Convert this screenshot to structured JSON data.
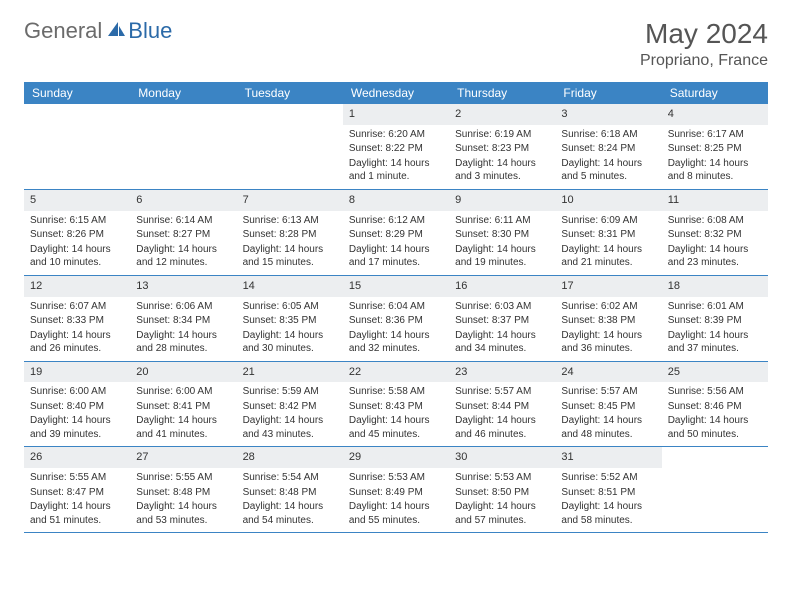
{
  "brand": {
    "word1": "General",
    "word2": "Blue"
  },
  "title": "May 2024",
  "location": "Propriano, France",
  "colors": {
    "header_bg": "#3b84c4",
    "header_text": "#ffffff",
    "daynum_bg": "#eceef0",
    "border": "#3b84c4",
    "brand_gray": "#6b6b6b",
    "brand_blue": "#2b6aa8"
  },
  "day_names": [
    "Sunday",
    "Monday",
    "Tuesday",
    "Wednesday",
    "Thursday",
    "Friday",
    "Saturday"
  ],
  "weeks": [
    [
      {
        "n": "",
        "sunrise": "",
        "sunset": "",
        "daylight": ""
      },
      {
        "n": "",
        "sunrise": "",
        "sunset": "",
        "daylight": ""
      },
      {
        "n": "",
        "sunrise": "",
        "sunset": "",
        "daylight": ""
      },
      {
        "n": "1",
        "sunrise": "Sunrise: 6:20 AM",
        "sunset": "Sunset: 8:22 PM",
        "daylight": "Daylight: 14 hours and 1 minute."
      },
      {
        "n": "2",
        "sunrise": "Sunrise: 6:19 AM",
        "sunset": "Sunset: 8:23 PM",
        "daylight": "Daylight: 14 hours and 3 minutes."
      },
      {
        "n": "3",
        "sunrise": "Sunrise: 6:18 AM",
        "sunset": "Sunset: 8:24 PM",
        "daylight": "Daylight: 14 hours and 5 minutes."
      },
      {
        "n": "4",
        "sunrise": "Sunrise: 6:17 AM",
        "sunset": "Sunset: 8:25 PM",
        "daylight": "Daylight: 14 hours and 8 minutes."
      }
    ],
    [
      {
        "n": "5",
        "sunrise": "Sunrise: 6:15 AM",
        "sunset": "Sunset: 8:26 PM",
        "daylight": "Daylight: 14 hours and 10 minutes."
      },
      {
        "n": "6",
        "sunrise": "Sunrise: 6:14 AM",
        "sunset": "Sunset: 8:27 PM",
        "daylight": "Daylight: 14 hours and 12 minutes."
      },
      {
        "n": "7",
        "sunrise": "Sunrise: 6:13 AM",
        "sunset": "Sunset: 8:28 PM",
        "daylight": "Daylight: 14 hours and 15 minutes."
      },
      {
        "n": "8",
        "sunrise": "Sunrise: 6:12 AM",
        "sunset": "Sunset: 8:29 PM",
        "daylight": "Daylight: 14 hours and 17 minutes."
      },
      {
        "n": "9",
        "sunrise": "Sunrise: 6:11 AM",
        "sunset": "Sunset: 8:30 PM",
        "daylight": "Daylight: 14 hours and 19 minutes."
      },
      {
        "n": "10",
        "sunrise": "Sunrise: 6:09 AM",
        "sunset": "Sunset: 8:31 PM",
        "daylight": "Daylight: 14 hours and 21 minutes."
      },
      {
        "n": "11",
        "sunrise": "Sunrise: 6:08 AM",
        "sunset": "Sunset: 8:32 PM",
        "daylight": "Daylight: 14 hours and 23 minutes."
      }
    ],
    [
      {
        "n": "12",
        "sunrise": "Sunrise: 6:07 AM",
        "sunset": "Sunset: 8:33 PM",
        "daylight": "Daylight: 14 hours and 26 minutes."
      },
      {
        "n": "13",
        "sunrise": "Sunrise: 6:06 AM",
        "sunset": "Sunset: 8:34 PM",
        "daylight": "Daylight: 14 hours and 28 minutes."
      },
      {
        "n": "14",
        "sunrise": "Sunrise: 6:05 AM",
        "sunset": "Sunset: 8:35 PM",
        "daylight": "Daylight: 14 hours and 30 minutes."
      },
      {
        "n": "15",
        "sunrise": "Sunrise: 6:04 AM",
        "sunset": "Sunset: 8:36 PM",
        "daylight": "Daylight: 14 hours and 32 minutes."
      },
      {
        "n": "16",
        "sunrise": "Sunrise: 6:03 AM",
        "sunset": "Sunset: 8:37 PM",
        "daylight": "Daylight: 14 hours and 34 minutes."
      },
      {
        "n": "17",
        "sunrise": "Sunrise: 6:02 AM",
        "sunset": "Sunset: 8:38 PM",
        "daylight": "Daylight: 14 hours and 36 minutes."
      },
      {
        "n": "18",
        "sunrise": "Sunrise: 6:01 AM",
        "sunset": "Sunset: 8:39 PM",
        "daylight": "Daylight: 14 hours and 37 minutes."
      }
    ],
    [
      {
        "n": "19",
        "sunrise": "Sunrise: 6:00 AM",
        "sunset": "Sunset: 8:40 PM",
        "daylight": "Daylight: 14 hours and 39 minutes."
      },
      {
        "n": "20",
        "sunrise": "Sunrise: 6:00 AM",
        "sunset": "Sunset: 8:41 PM",
        "daylight": "Daylight: 14 hours and 41 minutes."
      },
      {
        "n": "21",
        "sunrise": "Sunrise: 5:59 AM",
        "sunset": "Sunset: 8:42 PM",
        "daylight": "Daylight: 14 hours and 43 minutes."
      },
      {
        "n": "22",
        "sunrise": "Sunrise: 5:58 AM",
        "sunset": "Sunset: 8:43 PM",
        "daylight": "Daylight: 14 hours and 45 minutes."
      },
      {
        "n": "23",
        "sunrise": "Sunrise: 5:57 AM",
        "sunset": "Sunset: 8:44 PM",
        "daylight": "Daylight: 14 hours and 46 minutes."
      },
      {
        "n": "24",
        "sunrise": "Sunrise: 5:57 AM",
        "sunset": "Sunset: 8:45 PM",
        "daylight": "Daylight: 14 hours and 48 minutes."
      },
      {
        "n": "25",
        "sunrise": "Sunrise: 5:56 AM",
        "sunset": "Sunset: 8:46 PM",
        "daylight": "Daylight: 14 hours and 50 minutes."
      }
    ],
    [
      {
        "n": "26",
        "sunrise": "Sunrise: 5:55 AM",
        "sunset": "Sunset: 8:47 PM",
        "daylight": "Daylight: 14 hours and 51 minutes."
      },
      {
        "n": "27",
        "sunrise": "Sunrise: 5:55 AM",
        "sunset": "Sunset: 8:48 PM",
        "daylight": "Daylight: 14 hours and 53 minutes."
      },
      {
        "n": "28",
        "sunrise": "Sunrise: 5:54 AM",
        "sunset": "Sunset: 8:48 PM",
        "daylight": "Daylight: 14 hours and 54 minutes."
      },
      {
        "n": "29",
        "sunrise": "Sunrise: 5:53 AM",
        "sunset": "Sunset: 8:49 PM",
        "daylight": "Daylight: 14 hours and 55 minutes."
      },
      {
        "n": "30",
        "sunrise": "Sunrise: 5:53 AM",
        "sunset": "Sunset: 8:50 PM",
        "daylight": "Daylight: 14 hours and 57 minutes."
      },
      {
        "n": "31",
        "sunrise": "Sunrise: 5:52 AM",
        "sunset": "Sunset: 8:51 PM",
        "daylight": "Daylight: 14 hours and 58 minutes."
      },
      {
        "n": "",
        "sunrise": "",
        "sunset": "",
        "daylight": ""
      }
    ]
  ]
}
